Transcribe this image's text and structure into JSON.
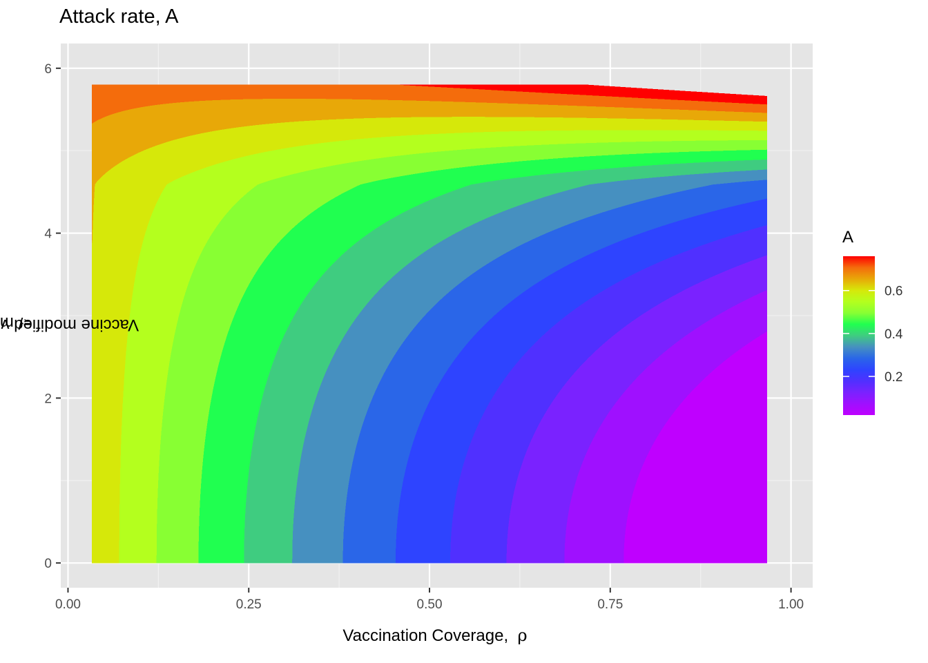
{
  "chart_data": {
    "type": "heatmap",
    "subtype": "filled-contour",
    "title": "Attack rate, A",
    "xlabel_text": "Vaccination Coverage,",
    "xlabel_symbol": "ρ",
    "ylabel_text": "Vaccine modified viral shedding, m",
    "ylabel_sub1": "i",
    "ylabel_mid": "/ m",
    "ylabel_sub2": "r",
    "xlim": [
      -0.01,
      1.03
    ],
    "ylim": [
      -0.3,
      6.3
    ],
    "x_ticks": [
      0.0,
      0.25,
      0.5,
      0.75,
      1.0
    ],
    "x_tick_labels": [
      "0.00",
      "0.25",
      "0.50",
      "0.75",
      "1.00"
    ],
    "y_ticks": [
      0,
      2,
      4,
      6
    ],
    "y_tick_labels": [
      "0",
      "2",
      "4",
      "6"
    ],
    "data_x_range": [
      0.0333,
      0.9667
    ],
    "data_y_range": [
      0,
      5.8
    ],
    "grid": true,
    "panel_background": "#E5E5E5",
    "legend": {
      "title": "A",
      "placement": "right",
      "range": [
        0.02,
        0.76
      ],
      "ticks": [
        0.2,
        0.4,
        0.6
      ],
      "tick_labels": [
        "0.2",
        "0.4",
        "0.6"
      ]
    },
    "contour_levels": [
      0.05,
      0.1,
      0.15,
      0.2,
      0.25,
      0.3,
      0.35,
      0.4,
      0.45,
      0.5,
      0.55,
      0.6,
      0.65,
      0.7,
      0.75
    ],
    "band_colors": [
      "#BF00FF",
      "#9F10FF",
      "#7A22FF",
      "#5030FF",
      "#2E44FF",
      "#2A66E8",
      "#4690C0",
      "#3FCC80",
      "#20FF50",
      "#88FF33",
      "#B4FF1E",
      "#D6E80A",
      "#E8A808",
      "#F46C0C",
      "#FF0000"
    ],
    "colorscale": [
      "#BF00FF",
      "#9F10FF",
      "#7A22FF",
      "#5030FF",
      "#2E44FF",
      "#2A66E8",
      "#4690C0",
      "#3FCC80",
      "#20FF50",
      "#88FF33",
      "#B4FF1E",
      "#D6E80A",
      "#E8A808",
      "#F46C0C",
      "#FF0000"
    ]
  }
}
